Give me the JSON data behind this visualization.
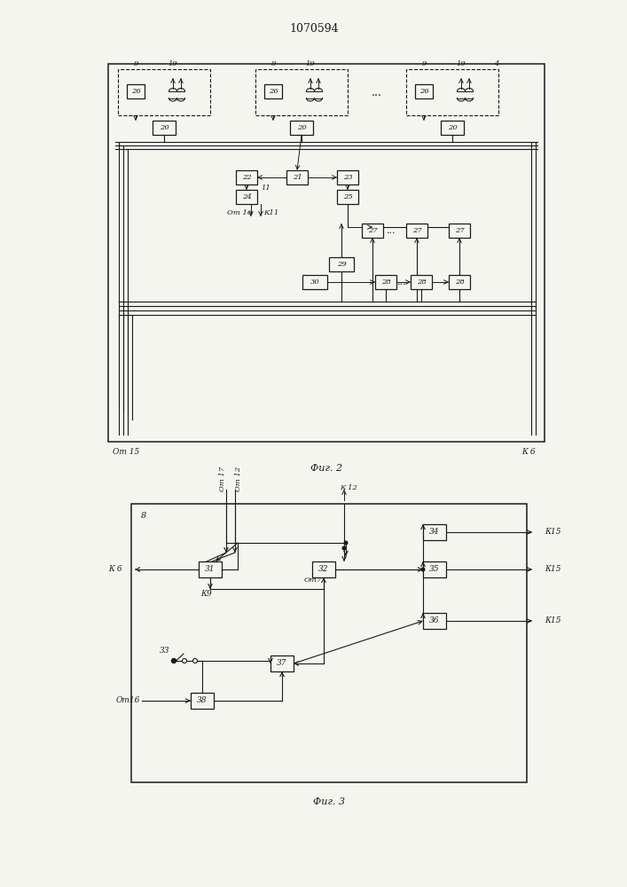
{
  "title": "1070594",
  "fig2_label": "Фиг. 2",
  "fig3_label": "Фиг. 3",
  "bg_color": "#f5f5f0",
  "line_color": "#1a1a1a",
  "box_color": "#f5f5f0",
  "text_color": "#1a1a1a"
}
